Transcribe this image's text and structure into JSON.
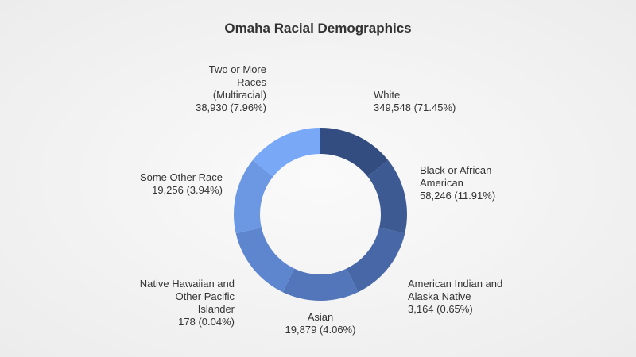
{
  "chart_data": {
    "type": "donut",
    "title": "Omaha Racial Demographics",
    "categories": [
      "White",
      "Black or African American",
      "American Indian and Alaska Native",
      "Asian",
      "Native Hawaiian and Other Pacific Islander",
      "Some Other Race",
      "Two or More Races (Multiracial)"
    ],
    "values": [
      349548,
      58246,
      3164,
      19879,
      178,
      19256,
      38930
    ],
    "value_labels": [
      "349,548 (71.45%)",
      "58,246 (11.91%)",
      "3,164 (0.65%)",
      "19,879 (4.06%)",
      "178 (0.04%)",
      "19,256 (3.94%)",
      "38,930 (7.96%)"
    ],
    "colors": [
      "#334d80",
      "#3d5a93",
      "#4767a6",
      "#5276b9",
      "#5e86ce",
      "#6b97e3",
      "#79a9f6"
    ],
    "slice_sizing": "equal"
  }
}
